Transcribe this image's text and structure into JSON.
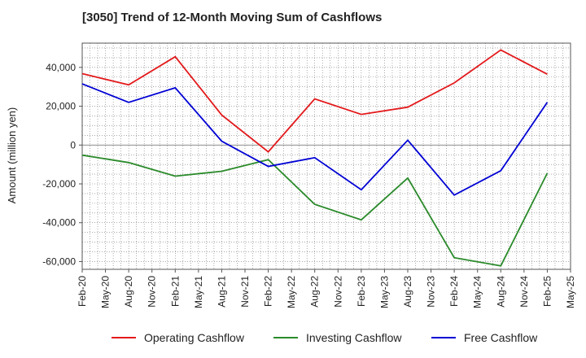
{
  "chart_data": {
    "type": "line",
    "title": "[3050]  Trend of 12-Month Moving Sum of Cashflows",
    "ylabel": "Amount (million yen)",
    "xlabel": "",
    "x_ticks": [
      "Feb-20",
      "May-20",
      "Aug-20",
      "Nov-20",
      "Feb-21",
      "May-21",
      "Aug-21",
      "Nov-21",
      "Feb-22",
      "May-22",
      "Aug-22",
      "Nov-22",
      "Feb-23",
      "May-23",
      "Aug-23",
      "Nov-23",
      "Feb-24",
      "May-24",
      "Aug-24",
      "Nov-24",
      "Feb-25",
      "May-25"
    ],
    "y_ticks": [
      40000,
      20000,
      0,
      -20000,
      -40000,
      -60000
    ],
    "y_tick_labels": [
      "40,000",
      "20,000",
      "0",
      "-20,000",
      "-40,000",
      "-60,000"
    ],
    "ylim": [
      -64000,
      52500
    ],
    "grid": true,
    "legend_position": "bottom",
    "x": [
      "Feb-20",
      "Aug-20",
      "Feb-21",
      "Aug-21",
      "Feb-22",
      "Aug-22",
      "Feb-23",
      "Aug-23",
      "Feb-24",
      "Aug-24",
      "Feb-25"
    ],
    "series": [
      {
        "name": "Operating Cashflow",
        "color": "#e31a1c",
        "values": [
          36800,
          31000,
          45500,
          15500,
          -3500,
          23800,
          15800,
          19500,
          32000,
          49000,
          36500
        ]
      },
      {
        "name": "Investing Cashflow",
        "color": "#2a8a2a",
        "values": [
          -5200,
          -9000,
          -16000,
          -13500,
          -7500,
          -30500,
          -38500,
          -17000,
          -58000,
          -62200,
          -14500
        ]
      },
      {
        "name": "Free Cashflow",
        "color": "#0000d4",
        "values": [
          31500,
          22000,
          29500,
          2000,
          -11000,
          -6500,
          -23000,
          2500,
          -25800,
          -13200,
          22000
        ]
      }
    ]
  }
}
